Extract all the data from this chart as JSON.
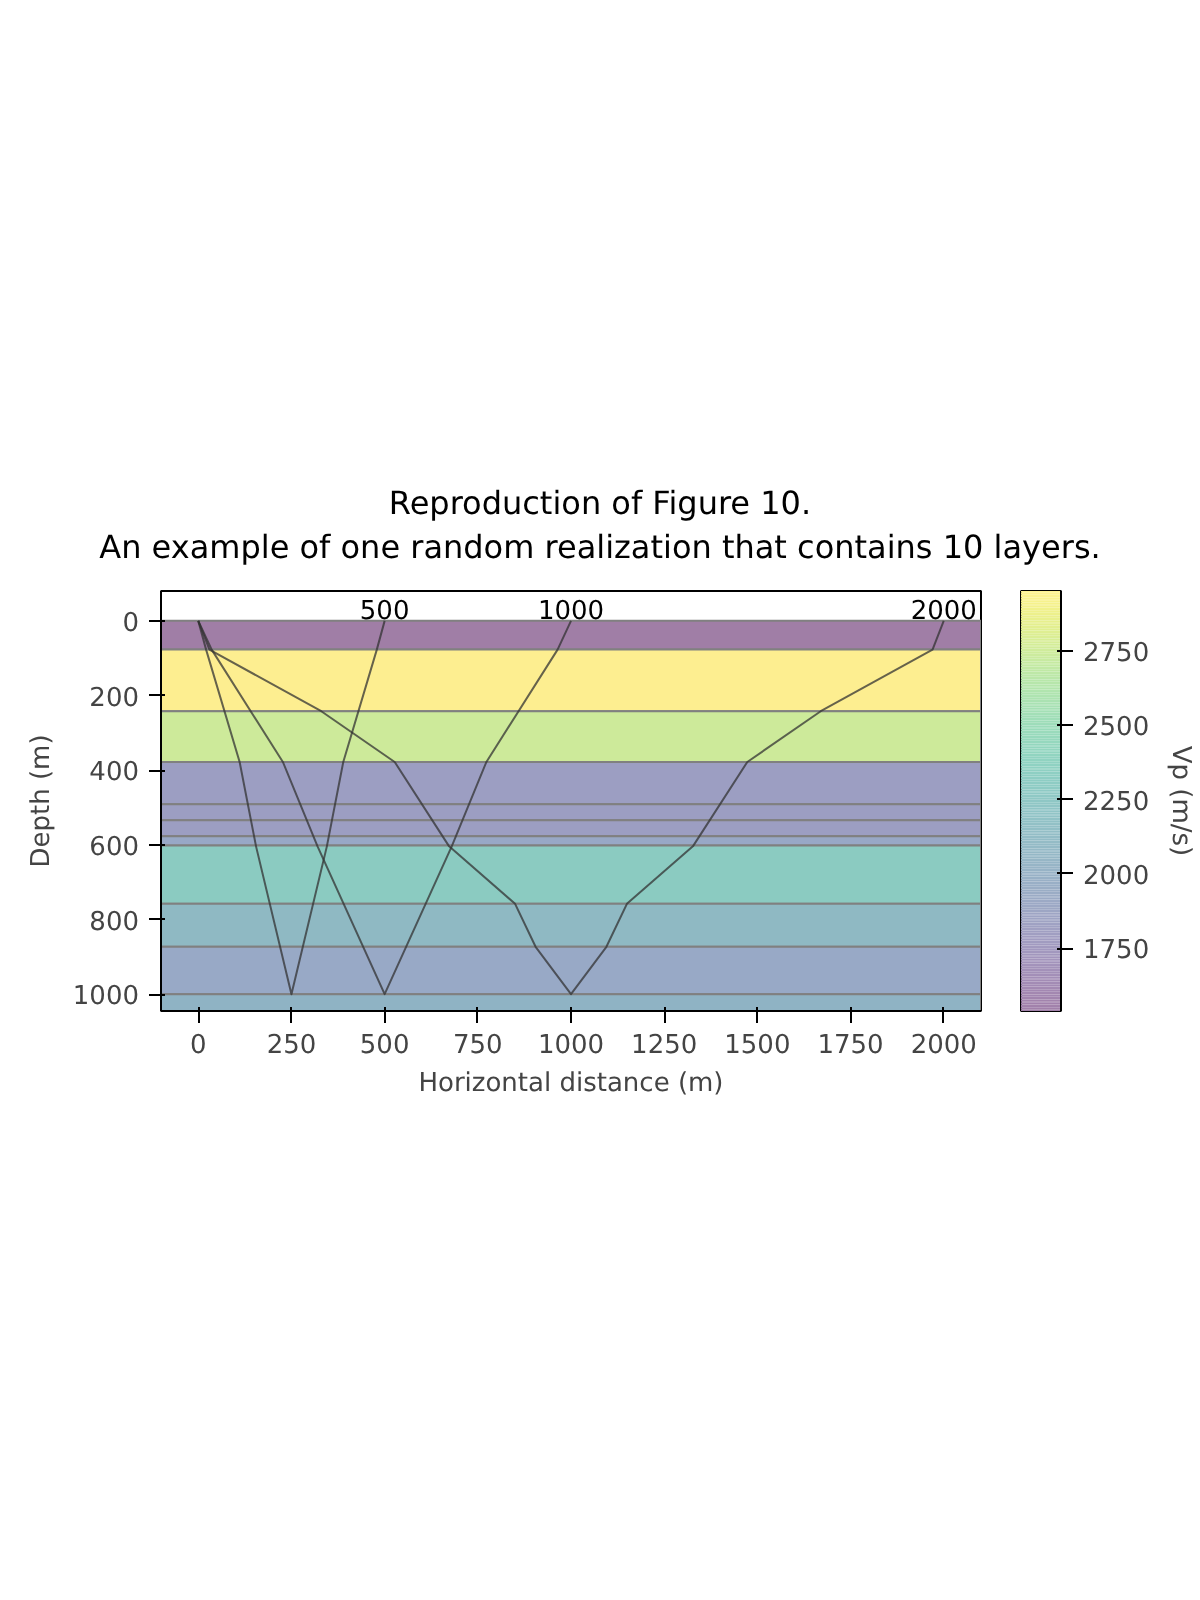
{
  "chart_data": {
    "type": "line",
    "title": "Reproduction of Figure 10.",
    "subtitle": "An example of one random realization that contains 10 layers.",
    "xlabel": "Horizontal distance (m)",
    "ylabel": "Depth (m)",
    "clabel": "Vp (m/s)",
    "xlim": [
      -100,
      2100
    ],
    "ylim": [
      1045,
      -80
    ],
    "xticks": [
      0,
      250,
      500,
      750,
      1000,
      1250,
      1500,
      1750,
      2000
    ],
    "yticks": [
      0,
      200,
      400,
      600,
      800,
      1000
    ],
    "clim": [
      1540,
      2950
    ],
    "cticks": [
      1750,
      2000,
      2250,
      2500,
      2750
    ],
    "grid": false,
    "series": [
      {
        "color": "#333333",
        "x": [
          0,
          21,
          111,
          155,
          250,
          345,
          389,
          479,
          500
        ],
        "values": [
          0,
          77,
          378,
          604,
          1000,
          604,
          378,
          77,
          0
        ]
      },
      {
        "color": "#333333",
        "x": [
          0,
          36,
          227,
          320,
          500,
          680,
          773,
          964,
          1000
        ],
        "values": [
          0,
          77,
          378,
          604,
          1000,
          604,
          378,
          77,
          0
        ]
      },
      {
        "color": "#333333",
        "x": [
          0,
          30,
          330,
          527,
          673,
          850,
          905,
          1000,
          1095,
          1150,
          1327,
          1473,
          1670,
          1970,
          2000
        ],
        "values": [
          0,
          77,
          242,
          378,
          604,
          758,
          873,
          1000,
          873,
          758,
          604,
          378,
          242,
          77,
          0
        ]
      }
    ],
    "bands": [
      {
        "axis": "y",
        "from": 0,
        "to": 77,
        "color": "#a07ea6"
      },
      {
        "axis": "y",
        "from": 77,
        "to": 242,
        "color": "#fdee90"
      },
      {
        "axis": "y",
        "from": 242,
        "to": 378,
        "color": "#cdea9a"
      },
      {
        "axis": "y",
        "from": 378,
        "to": 491,
        "color": "#9c9ec2"
      },
      {
        "axis": "y",
        "from": 491,
        "to": 534,
        "color": "#9c9ec2"
      },
      {
        "axis": "y",
        "from": 534,
        "to": 577,
        "color": "#9c9ec2"
      },
      {
        "axis": "y",
        "from": 577,
        "to": 602,
        "color": "#98a8c6"
      },
      {
        "axis": "y",
        "from": 602,
        "to": 758,
        "color": "#8bcbc1"
      },
      {
        "axis": "y",
        "from": 758,
        "to": 873,
        "color": "#8fb9c3"
      },
      {
        "axis": "y",
        "from": 873,
        "to": 1000,
        "color": "#98a9c6"
      },
      {
        "axis": "y",
        "from": 1000,
        "to": 1045,
        "color": "#8fb3c4"
      }
    ],
    "annotations": [
      {
        "text": "500",
        "x": 500,
        "y": 0
      },
      {
        "text": "1000",
        "x": 1000,
        "y": 0
      },
      {
        "text": "2000",
        "x": 2000,
        "y": 0
      }
    ]
  }
}
